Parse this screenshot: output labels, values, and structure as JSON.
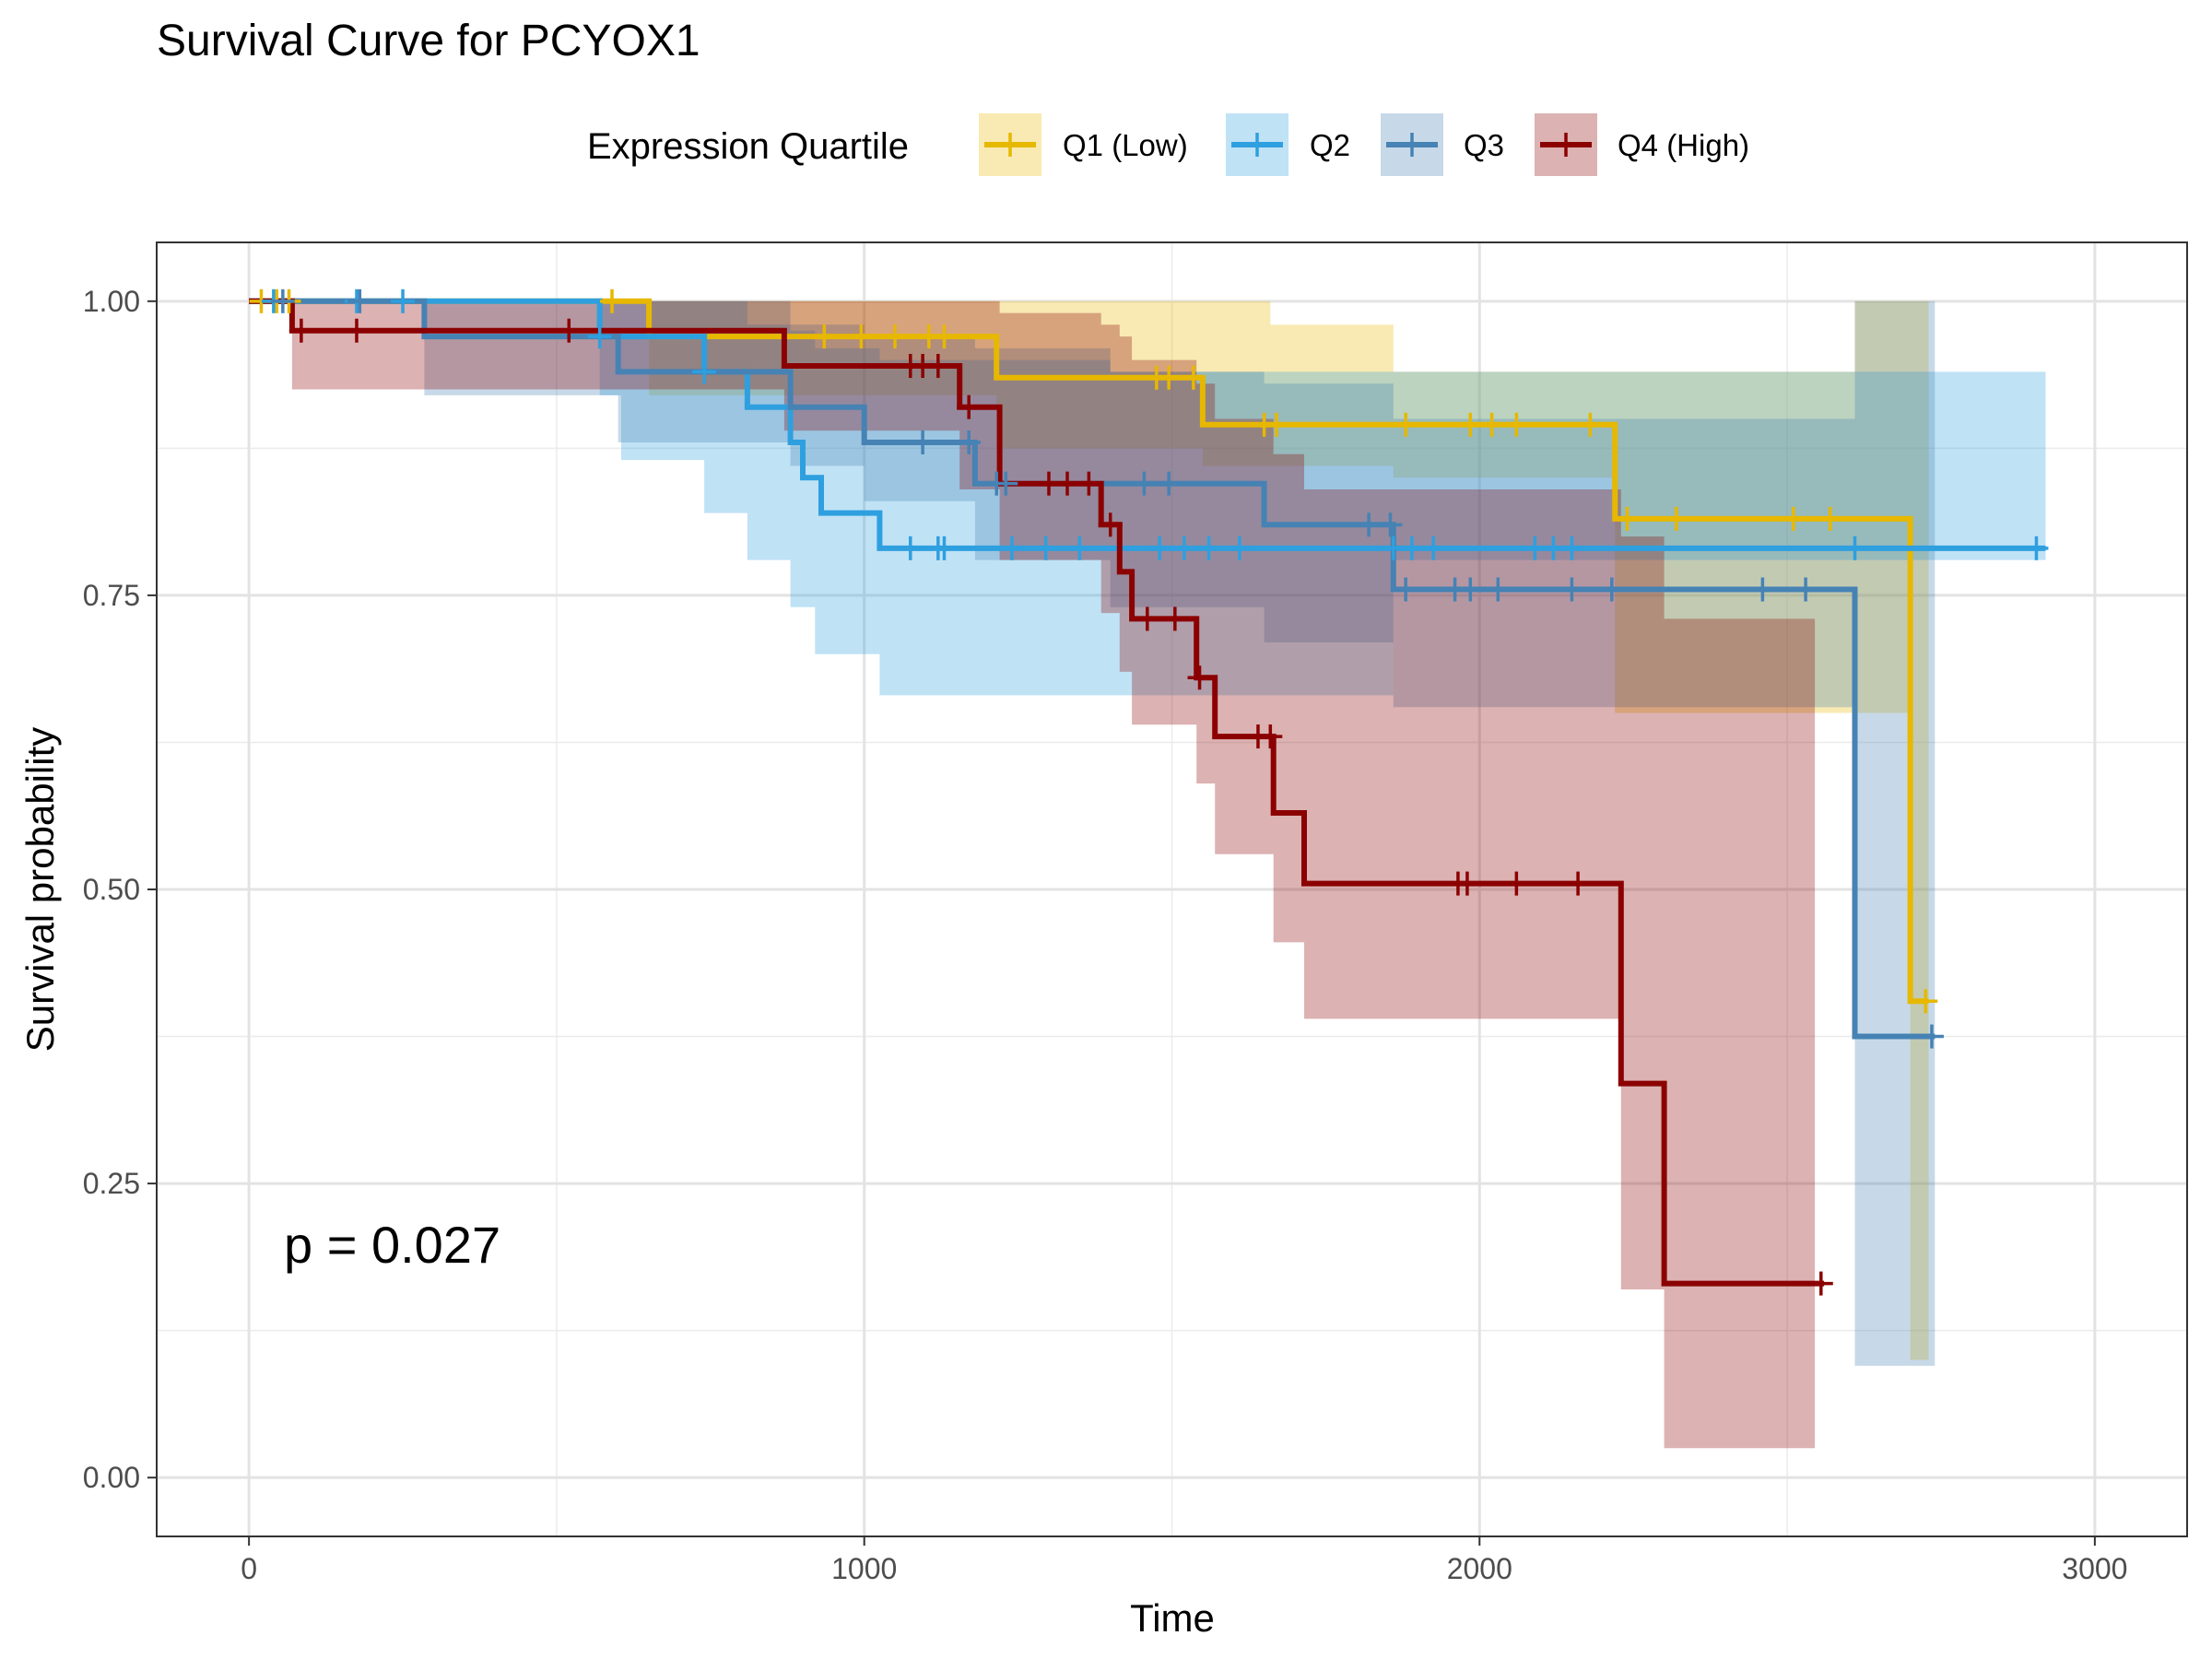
{
  "chart_data": {
    "type": "line",
    "subtype": "kaplan-meier survival curve with confidence bands",
    "title": "Survival Curve for PCYOX1",
    "xlabel": "Time",
    "ylabel": "Survival probability",
    "xlim": [
      -150,
      3150
    ],
    "ylim": [
      -0.05,
      1.05
    ],
    "xticks": [
      0,
      1000,
      2000,
      3000
    ],
    "xtick_labels": [
      "0",
      "1000",
      "2000",
      "3000"
    ],
    "yticks": [
      0,
      0.25,
      0.5,
      0.75,
      1.0
    ],
    "ytick_labels": [
      "0.00",
      "0.25",
      "0.50",
      "0.75",
      "1.00"
    ],
    "grid": true,
    "legend": {
      "title": "Expression Quartile",
      "position": "top"
    },
    "annotation": "p = 0.027",
    "series": [
      {
        "name": "Q1 (Low)",
        "color": "#E7B800",
        "steps": [
          [
            0,
            1.0
          ],
          [
            650,
            0.97
          ],
          [
            1215,
            0.935
          ],
          [
            1550,
            0.895
          ],
          [
            2220,
            0.815
          ],
          [
            2700,
            0.405
          ],
          [
            2730,
            0.405
          ]
        ],
        "ci": [
          [
            0,
            1.0,
            1.0
          ],
          [
            650,
            1.0,
            0.92
          ],
          [
            1215,
            1.0,
            0.875
          ],
          [
            1550,
            1.0,
            0.86
          ],
          [
            1660,
            0.98,
            0.86
          ],
          [
            1860,
            0.94,
            0.85
          ],
          [
            2220,
            0.94,
            0.65
          ],
          [
            2600,
            0.94,
            0.65
          ],
          [
            2610,
            1.0,
            0.65
          ],
          [
            2700,
            1.0,
            0.1
          ],
          [
            2730,
            1.0,
            0.1
          ]
        ],
        "censor": [
          [
            20,
            1.0
          ],
          [
            45,
            1.0
          ],
          [
            65,
            1.0
          ],
          [
            590,
            1.0
          ],
          [
            935,
            0.97
          ],
          [
            995,
            0.97
          ],
          [
            1050,
            0.97
          ],
          [
            1105,
            0.97
          ],
          [
            1130,
            0.97
          ],
          [
            1475,
            0.935
          ],
          [
            1495,
            0.935
          ],
          [
            1535,
            0.935
          ],
          [
            1650,
            0.895
          ],
          [
            1670,
            0.895
          ],
          [
            1880,
            0.895
          ],
          [
            1985,
            0.895
          ],
          [
            2020,
            0.895
          ],
          [
            2060,
            0.895
          ],
          [
            2180,
            0.895
          ],
          [
            2240,
            0.815
          ],
          [
            2320,
            0.815
          ],
          [
            2510,
            0.815
          ],
          [
            2570,
            0.815
          ],
          [
            2725,
            0.405
          ]
        ]
      },
      {
        "name": "Q2",
        "color": "#2E9FDF",
        "steps": [
          [
            0,
            1.0
          ],
          [
            570,
            0.97
          ],
          [
            740,
            0.94
          ],
          [
            810,
            0.91
          ],
          [
            880,
            0.88
          ],
          [
            900,
            0.85
          ],
          [
            930,
            0.82
          ],
          [
            1025,
            0.79
          ],
          [
            2920,
            0.79
          ]
        ],
        "ci": [
          [
            0,
            1.0,
            1.0
          ],
          [
            570,
            1.0,
            0.92
          ],
          [
            605,
            1.0,
            0.865
          ],
          [
            740,
            1.0,
            0.82
          ],
          [
            810,
            0.98,
            0.78
          ],
          [
            880,
            0.975,
            0.74
          ],
          [
            920,
            0.96,
            0.7
          ],
          [
            1025,
            0.95,
            0.665
          ],
          [
            1400,
            0.94,
            0.665
          ],
          [
            1860,
            0.94,
            0.78
          ],
          [
            2920,
            0.94,
            0.665
          ]
        ],
        "censor": [
          [
            40,
            1.0
          ],
          [
            175,
            1.0
          ],
          [
            250,
            1.0
          ],
          [
            570,
            0.97
          ],
          [
            740,
            0.94
          ],
          [
            1075,
            0.79
          ],
          [
            1120,
            0.79
          ],
          [
            1130,
            0.79
          ],
          [
            1240,
            0.79
          ],
          [
            1295,
            0.79
          ],
          [
            1350,
            0.79
          ],
          [
            1480,
            0.79
          ],
          [
            1520,
            0.79
          ],
          [
            1560,
            0.79
          ],
          [
            1610,
            0.79
          ],
          [
            1860,
            0.79
          ],
          [
            1890,
            0.79
          ],
          [
            1925,
            0.79
          ],
          [
            2090,
            0.79
          ],
          [
            2120,
            0.79
          ],
          [
            2150,
            0.79
          ],
          [
            2610,
            0.79
          ],
          [
            2905,
            0.79
          ]
        ]
      },
      {
        "name": "Q3",
        "color": "#4682B4",
        "steps": [
          [
            0,
            1.0
          ],
          [
            285,
            0.97
          ],
          [
            460,
            0.97
          ],
          [
            600,
            0.94
          ],
          [
            740,
            0.94
          ],
          [
            880,
            0.91
          ],
          [
            1000,
            0.88
          ],
          [
            1180,
            0.845
          ],
          [
            1650,
            0.81
          ],
          [
            1860,
            0.755
          ],
          [
            2610,
            0.375
          ],
          [
            2740,
            0.375
          ]
        ],
        "ci": [
          [
            0,
            1.0,
            1.0
          ],
          [
            285,
            1.0,
            0.92
          ],
          [
            460,
            1.0,
            0.92
          ],
          [
            600,
            1.0,
            0.88
          ],
          [
            880,
            0.98,
            0.86
          ],
          [
            1000,
            0.97,
            0.83
          ],
          [
            1180,
            0.96,
            0.78
          ],
          [
            1400,
            0.94,
            0.74
          ],
          [
            1650,
            0.93,
            0.71
          ],
          [
            1860,
            0.9,
            0.655
          ],
          [
            2610,
            1.0,
            0.095
          ],
          [
            2740,
            1.0,
            0.095
          ]
        ],
        "censor": [
          [
            55,
            1.0
          ],
          [
            180,
            1.0
          ],
          [
            1095,
            0.88
          ],
          [
            1170,
            0.88
          ],
          [
            1215,
            0.845
          ],
          [
            1230,
            0.845
          ],
          [
            1455,
            0.845
          ],
          [
            1495,
            0.845
          ],
          [
            1820,
            0.81
          ],
          [
            1855,
            0.81
          ],
          [
            1880,
            0.755
          ],
          [
            1960,
            0.755
          ],
          [
            1985,
            0.755
          ],
          [
            2030,
            0.755
          ],
          [
            2150,
            0.755
          ],
          [
            2215,
            0.755
          ],
          [
            2460,
            0.755
          ],
          [
            2530,
            0.755
          ],
          [
            2735,
            0.375
          ]
        ]
      },
      {
        "name": "Q4 (High)",
        "color": "#8B0000",
        "steps": [
          [
            0,
            1.0
          ],
          [
            70,
            0.975
          ],
          [
            870,
            0.945
          ],
          [
            1155,
            0.91
          ],
          [
            1220,
            0.845
          ],
          [
            1385,
            0.81
          ],
          [
            1415,
            0.77
          ],
          [
            1435,
            0.73
          ],
          [
            1540,
            0.68
          ],
          [
            1570,
            0.63
          ],
          [
            1665,
            0.565
          ],
          [
            1715,
            0.505
          ],
          [
            2230,
            0.335
          ],
          [
            2300,
            0.165
          ],
          [
            2560,
            0.165
          ]
        ],
        "ci": [
          [
            0,
            1.0,
            1.0
          ],
          [
            70,
            1.0,
            0.925
          ],
          [
            870,
            1.0,
            0.89
          ],
          [
            1155,
            1.0,
            0.84
          ],
          [
            1220,
            0.99,
            0.78
          ],
          [
            1385,
            0.98,
            0.735
          ],
          [
            1415,
            0.97,
            0.685
          ],
          [
            1435,
            0.95,
            0.64
          ],
          [
            1540,
            0.93,
            0.59
          ],
          [
            1570,
            0.9,
            0.53
          ],
          [
            1665,
            0.87,
            0.455
          ],
          [
            1715,
            0.84,
            0.39
          ],
          [
            2230,
            0.8,
            0.16
          ],
          [
            2300,
            0.73,
            0.025
          ],
          [
            2545,
            0.73,
            0.025
          ]
        ],
        "censor": [
          [
            85,
            0.975
          ],
          [
            175,
            0.975
          ],
          [
            520,
            0.975
          ],
          [
            1075,
            0.945
          ],
          [
            1095,
            0.945
          ],
          [
            1120,
            0.945
          ],
          [
            1170,
            0.91
          ],
          [
            1300,
            0.845
          ],
          [
            1330,
            0.845
          ],
          [
            1365,
            0.845
          ],
          [
            1400,
            0.81
          ],
          [
            1460,
            0.73
          ],
          [
            1505,
            0.73
          ],
          [
            1545,
            0.68
          ],
          [
            1640,
            0.63
          ],
          [
            1660,
            0.63
          ],
          [
            1965,
            0.505
          ],
          [
            1980,
            0.505
          ],
          [
            2060,
            0.505
          ],
          [
            2160,
            0.505
          ],
          [
            2555,
            0.165
          ]
        ]
      }
    ]
  }
}
